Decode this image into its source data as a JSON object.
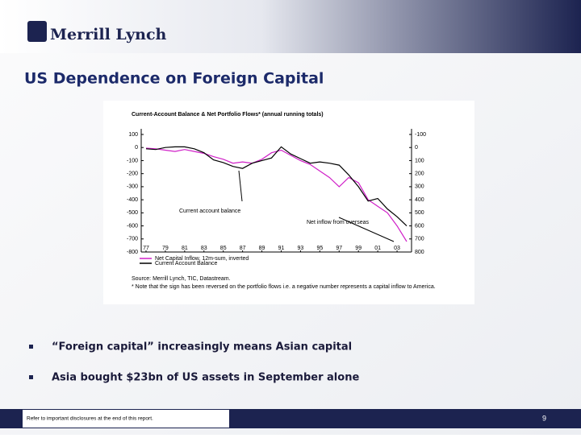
{
  "header": {
    "logo": "Merrill Lynch"
  },
  "title": "US Dependence on Foreign Capital",
  "figure": {
    "chart_data": {
      "type": "line",
      "title": "Current-Account Balance & Net Portfolio Flows* (annual running totals)",
      "x": [
        1977,
        1978,
        1979,
        1980,
        1981,
        1982,
        1983,
        1984,
        1985,
        1986,
        1987,
        1988,
        1989,
        1990,
        1991,
        1992,
        1993,
        1994,
        1995,
        1996,
        1997,
        1998,
        1999,
        2000,
        2001,
        2002,
        2003,
        2004
      ],
      "xlim": [
        1976.5,
        2004.5
      ],
      "xticks": [
        {
          "value": 1977,
          "label": "77"
        },
        {
          "value": 1979,
          "label": "79"
        },
        {
          "value": 1981,
          "label": "81"
        },
        {
          "value": 1983,
          "label": "83"
        },
        {
          "value": 1985,
          "label": "85"
        },
        {
          "value": 1987,
          "label": "87"
        },
        {
          "value": 1989,
          "label": "89"
        },
        {
          "value": 1991,
          "label": "91"
        },
        {
          "value": 1993,
          "label": "93"
        },
        {
          "value": 1995,
          "label": "95"
        },
        {
          "value": 1997,
          "label": "97"
        },
        {
          "value": 1999,
          "label": "99"
        },
        {
          "value": 2001,
          "label": "01"
        },
        {
          "value": 2003,
          "label": "03"
        }
      ],
      "ylim": [
        -800,
        100
      ],
      "yticks": [
        100,
        0,
        -100,
        -200,
        -300,
        -400,
        -500,
        -600,
        -700,
        -800
      ],
      "y2lim": [
        -800,
        100
      ],
      "y2ticks": [
        {
          "value": 100,
          "label": "-100"
        },
        {
          "value": 0,
          "label": "0"
        },
        {
          "value": -100,
          "label": "100"
        },
        {
          "value": -200,
          "label": "200"
        },
        {
          "value": -300,
          "label": "300"
        },
        {
          "value": -400,
          "label": "400"
        },
        {
          "value": -500,
          "label": "500"
        },
        {
          "value": -600,
          "label": "600"
        },
        {
          "value": -700,
          "label": "700"
        },
        {
          "value": -800,
          "label": "800"
        }
      ],
      "series": [
        {
          "name": "Net Capital Inflow, 12m-sum, inverted",
          "color": "#d020c8",
          "values": [
            -5,
            -10,
            -20,
            -30,
            -15,
            -30,
            -45,
            -70,
            -90,
            -120,
            -110,
            -120,
            -90,
            -40,
            -20,
            -60,
            -100,
            -130,
            -180,
            -230,
            -300,
            -230,
            -270,
            -400,
            -450,
            -500,
            -600,
            -720
          ]
        },
        {
          "name": "Current Account Balance",
          "color": "#000000",
          "values": [
            -10,
            -15,
            0,
            5,
            5,
            -10,
            -40,
            -95,
            -115,
            -145,
            -160,
            -120,
            -100,
            -80,
            5,
            -50,
            -85,
            -120,
            -110,
            -120,
            -135,
            -210,
            -300,
            -410,
            -390,
            -470,
            -530,
            -600
          ]
        }
      ],
      "annotations": [
        "Current account balance",
        "Net inflow from overseas"
      ],
      "source": "Source: Merrill Lynch, TIC, Datastream.",
      "note": "* Note that the sign has been reversed on the portfolio flows i.e. a negative number represents a capital inflow to America."
    }
  },
  "bullets": [
    "“Foreign capital” increasingly means Asian capital",
    "Asia bought $23bn of US assets in September alone"
  ],
  "footer": {
    "disclaimer": "Refer to important disclosures at the end of this report.",
    "page": "9"
  }
}
